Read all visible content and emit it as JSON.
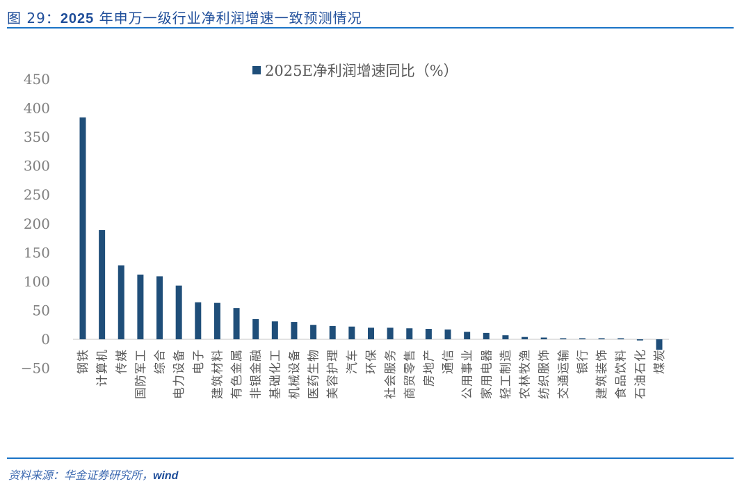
{
  "header": {
    "figure_label": "图 29：",
    "figure_number": "2025",
    "title_rest": "年申万一级行业净利润增速一致预测情况",
    "full_title": "图 29：2025 年申万一级行业净利润增速一致预测情况"
  },
  "footer": {
    "source_prefix": "资料来源：华金证券研究所，",
    "source_wind": "wind"
  },
  "colors": {
    "bar": "#1f4e79",
    "title": "#1f4e9a",
    "rule": "#1a73c6",
    "axis_text": "#7f7f7f",
    "label_text": "#595959"
  },
  "chart_data": {
    "type": "bar",
    "title": "",
    "legend": [
      "2025E净利润增速同比（%）"
    ],
    "legend_position": "top",
    "xlabel": "",
    "ylabel": "",
    "ylim": [
      -50,
      450
    ],
    "yticks": [
      450,
      400,
      350,
      300,
      250,
      200,
      150,
      100,
      50,
      0,
      -50
    ],
    "grid": false,
    "categories": [
      "钢铁",
      "计算机",
      "传媒",
      "国防军工",
      "综合",
      "电力设备",
      "电子",
      "建筑材料",
      "有色金属",
      "非银金融",
      "基础化工",
      "机械设备",
      "医药生物",
      "美容护理",
      "汽车",
      "环保",
      "社会服务",
      "商贸零售",
      "房地产",
      "通信",
      "公用事业",
      "家用电器",
      "轻工制造",
      "农林牧渔",
      "纺织服饰",
      "交通运输",
      "银行",
      "建筑装饰",
      "食品饮料",
      "石油石化",
      "煤炭"
    ],
    "series": [
      {
        "name": "2025E净利润增速同比（%）",
        "values": [
          384,
          189,
          128,
          112,
          109,
          93,
          64,
          63,
          54,
          35,
          31,
          30,
          25,
          23,
          22,
          20,
          20,
          19,
          18,
          17,
          13,
          11,
          7,
          4,
          3,
          0.5,
          0.3,
          0.2,
          0.1,
          -2,
          -18
        ]
      }
    ]
  }
}
